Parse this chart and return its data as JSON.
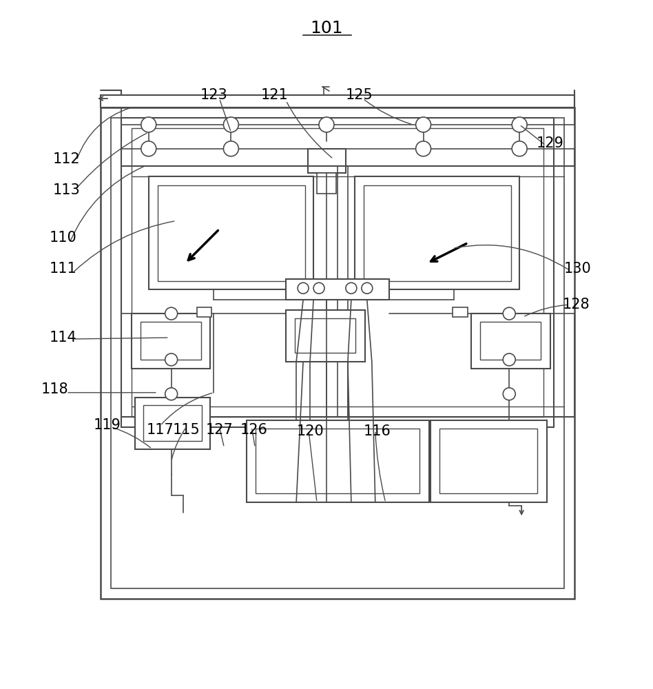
{
  "bg_color": "#ffffff",
  "lc": "#4a4a4a",
  "lw_thick": 1.8,
  "lw_thin": 1.2,
  "figsize": [
    9.48,
    10.0
  ],
  "dpi": 100
}
